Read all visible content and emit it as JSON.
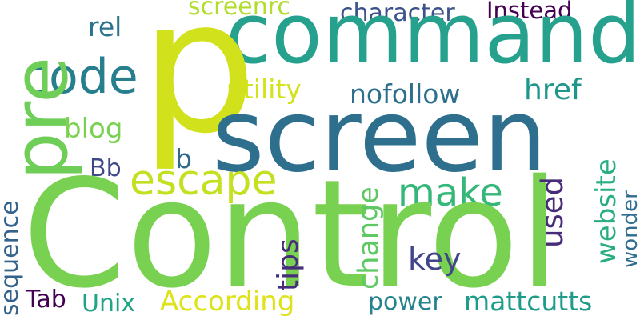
{
  "cloud": {
    "words": {
      "control": {
        "text": "Control",
        "color": "#79d151"
      },
      "p": {
        "text": "p",
        "color": "#d1e21c"
      },
      "command": {
        "text": "command",
        "color": "#25a18e"
      },
      "screen": {
        "text": "screen",
        "color": "#2e6f8e"
      },
      "pre": {
        "text": "pre",
        "color": "#6ece58"
      },
      "code": {
        "text": "code",
        "color": "#277f8e"
      },
      "escape": {
        "text": "escape",
        "color": "#c5e021"
      },
      "make": {
        "text": "make",
        "color": "#35b779"
      },
      "screenrc": {
        "text": "screenrc",
        "color": "#b1dd2f"
      },
      "rel": {
        "text": "rel",
        "color": "#2c738e"
      },
      "character": {
        "text": "character",
        "color": "#3b528b"
      },
      "instead": {
        "text": "Instead",
        "color": "#440154"
      },
      "utility": {
        "text": "utility",
        "color": "#d2e21b"
      },
      "nofollow": {
        "text": "nofollow",
        "color": "#2d708e"
      },
      "href": {
        "text": "href",
        "color": "#1f968b"
      },
      "blog": {
        "text": "blog",
        "color": "#7ad151"
      },
      "b": {
        "text": "b",
        "color": "#31688e"
      },
      "bb": {
        "text": "Bb",
        "color": "#3f4788"
      },
      "tips": {
        "text": "tips",
        "color": "#472d7b"
      },
      "change": {
        "text": "change",
        "color": "#5ec962"
      },
      "key": {
        "text": "key",
        "color": "#404688"
      },
      "used": {
        "text": "used",
        "color": "#472c7a"
      },
      "website": {
        "text": "website",
        "color": "#29af7f"
      },
      "wonder": {
        "text": "wonder",
        "color": "#2e6e8e"
      },
      "sequence": {
        "text": "sequence",
        "color": "#33638d"
      },
      "tab": {
        "text": "Tab",
        "color": "#440154"
      },
      "unix": {
        "text": "Unix",
        "color": "#20a486"
      },
      "according": {
        "text": "According",
        "color": "#dde318"
      },
      "power": {
        "text": "power",
        "color": "#25838e"
      },
      "mattcutts": {
        "text": "mattcutts",
        "color": "#1e9c89"
      }
    }
  }
}
